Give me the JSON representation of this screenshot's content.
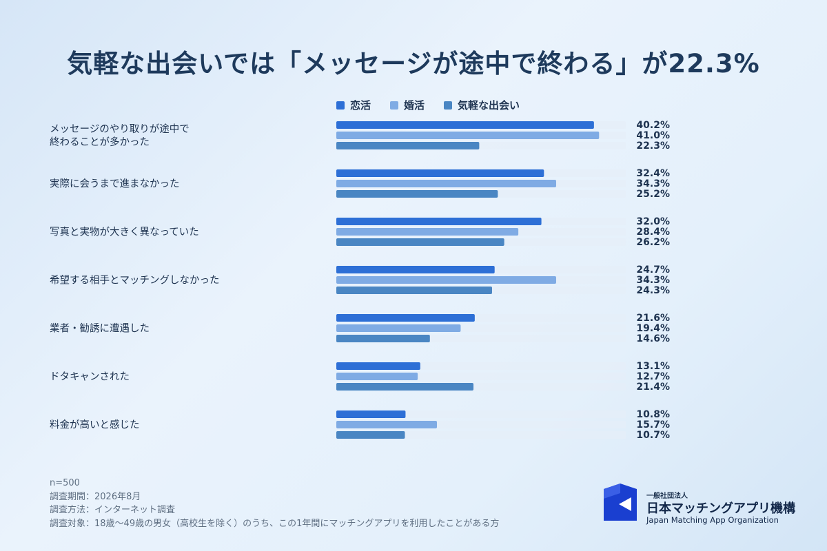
{
  "title": "気軽な出会いでは「メッセージが途中で終わる」が22.3%",
  "colors": {
    "series": [
      "#2d6fd6",
      "#7fabe4",
      "#4a86c3"
    ],
    "track": "#e6eef8",
    "logo": "#1a3fd0"
  },
  "chart_data": {
    "type": "bar",
    "orientation": "horizontal",
    "categories": [
      "メッセージのやり取りが途中で\n終わることが多かった",
      "実際に会うまで進まなかった",
      "写真と実物が大きく異なっていた",
      "希望する相手とマッチングしなかった",
      "業者・勧誘に遭遇した",
      "ドタキャンされた",
      "料金が高いと感じた"
    ],
    "series": [
      {
        "name": "恋活",
        "values": [
          40.2,
          32.4,
          32.0,
          24.7,
          21.6,
          13.1,
          10.8
        ]
      },
      {
        "name": "婚活",
        "values": [
          41.0,
          34.3,
          28.4,
          34.3,
          19.4,
          12.7,
          15.7
        ]
      },
      {
        "name": "気軽な出会い",
        "values": [
          22.3,
          25.2,
          26.2,
          24.3,
          14.6,
          21.4,
          10.7
        ]
      }
    ],
    "unit": "%",
    "xlim": [
      0,
      45
    ],
    "legend": "top",
    "grid": false
  },
  "notes": [
    "n=500",
    "調査期間：2026年8月",
    "調査方法：インターネット調査",
    "調査対象：18歳〜49歳の男女（高校生を除く）のうち、この1年間にマッチングアプリを利用したことがある方"
  ],
  "logo": {
    "sub": "一般社団法人",
    "name": "日本マッチングアプリ機構",
    "en": "Japan Matching App Organization",
    "icon": "organization-logo-mark"
  }
}
